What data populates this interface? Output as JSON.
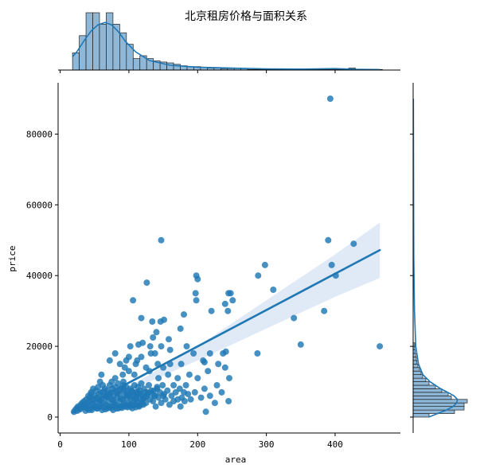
{
  "chart_data": {
    "type": "scatter",
    "title": "北京租房价格与面积关系",
    "xlabel": "area",
    "ylabel": "price",
    "xlim": [
      -3,
      495
    ],
    "ylim": [
      -4500,
      94500
    ],
    "xticks": [
      0,
      100,
      200,
      300,
      400
    ],
    "yticks": [
      0,
      20000,
      40000,
      60000,
      80000
    ],
    "grid": false,
    "colors": {
      "points": "#1f77b4",
      "regression": "#1f77b4",
      "confidence_band": "#dde9f5",
      "histogram_fill": "#8fb8d8",
      "histogram_edge": "#1f1f1f"
    },
    "regression": {
      "x": [
        18,
        465
      ],
      "y": [
        1300,
        47200
      ],
      "ci_x": [
        18,
        100,
        200,
        300,
        400,
        465
      ],
      "ci_upper": [
        2300,
        8600,
        20000,
        33000,
        46000,
        55000
      ],
      "ci_lower": [
        300,
        7400,
        16000,
        25000,
        34000,
        39300
      ]
    },
    "marginal_x_hist": {
      "bin_start": 18,
      "bin_width": 9.8,
      "counts": [
        6,
        12,
        20,
        20,
        16,
        20,
        16,
        13,
        9,
        4,
        5,
        4,
        3.2,
        2.8,
        2.5,
        2.0,
        1.5,
        1.2,
        1.2,
        1.0,
        0.7,
        0.7,
        0.5,
        0.5,
        0.5,
        0.5,
        0.2,
        0.2,
        0.2,
        0.2,
        0.2,
        0.2,
        0.2,
        0.2,
        0.2,
        0.2,
        0.2,
        0.2,
        0.2,
        0.2,
        0.2,
        0.7,
        0.2,
        0.2,
        0.2,
        0.2
      ],
      "max_count": 20
    },
    "marginal_y_hist": {
      "bin_start": 0,
      "bin_width": 1000,
      "counts": [
        5,
        13,
        16,
        16,
        17,
        12,
        11,
        9,
        7,
        5,
        4,
        3,
        2.5,
        2,
        1.5,
        1.2,
        1,
        0.8,
        0.6,
        0.5,
        0.5
      ],
      "max_count": 17
    },
    "kde_x": {
      "x": [
        18,
        25,
        35,
        45,
        55,
        65,
        75,
        85,
        95,
        110,
        130,
        160,
        200,
        250,
        300,
        350,
        400,
        430,
        465
      ],
      "density": [
        0.28,
        0.4,
        0.62,
        0.82,
        0.95,
        1.0,
        0.95,
        0.8,
        0.6,
        0.38,
        0.2,
        0.1,
        0.06,
        0.04,
        0.025,
        0.02,
        0.03,
        0.015,
        0.01
      ]
    },
    "kde_y": {
      "y": [
        0,
        1000,
        2000,
        3000,
        4000,
        5000,
        6000,
        7000,
        8000,
        10000,
        12000,
        15000,
        20000,
        30000,
        45000,
        60000,
        90000
      ],
      "density": [
        0.35,
        0.55,
        0.75,
        0.9,
        0.98,
        1.0,
        0.92,
        0.78,
        0.62,
        0.38,
        0.22,
        0.12,
        0.06,
        0.03,
        0.015,
        0.01,
        0.005
      ]
    },
    "points": [
      [
        393,
        90000
      ],
      [
        147,
        50000
      ],
      [
        390,
        50000
      ],
      [
        427,
        49000
      ],
      [
        298,
        43000
      ],
      [
        395,
        43000
      ],
      [
        401,
        40000
      ],
      [
        288,
        40000
      ],
      [
        198,
        40000
      ],
      [
        200,
        39000
      ],
      [
        126,
        38000
      ],
      [
        310,
        36000
      ],
      [
        245,
        35000
      ],
      [
        248,
        35000
      ],
      [
        197,
        35000
      ],
      [
        198,
        33000
      ],
      [
        106,
        33000
      ],
      [
        251,
        33000
      ],
      [
        240,
        32000
      ],
      [
        220,
        30000
      ],
      [
        244,
        30000
      ],
      [
        384,
        30000
      ],
      [
        180,
        29000
      ],
      [
        340,
        28000
      ],
      [
        118,
        28000
      ],
      [
        134,
        27000
      ],
      [
        146,
        27000
      ],
      [
        151,
        27500
      ],
      [
        175,
        25000
      ],
      [
        140,
        24000
      ],
      [
        135,
        22500
      ],
      [
        158,
        22000
      ],
      [
        120,
        21000
      ],
      [
        350,
        20500
      ],
      [
        465,
        20000
      ],
      [
        114,
        20500
      ],
      [
        147,
        20000
      ],
      [
        102,
        20000
      ],
      [
        131,
        20000
      ],
      [
        184,
        20000
      ],
      [
        160,
        19000
      ],
      [
        218,
        18000
      ],
      [
        194,
        18000
      ],
      [
        287,
        18000
      ],
      [
        132,
        18000
      ],
      [
        138,
        18000
      ],
      [
        241,
        18500
      ],
      [
        237,
        18000
      ],
      [
        80,
        18000
      ],
      [
        100,
        17000
      ],
      [
        118,
        17000
      ],
      [
        96,
        16000
      ],
      [
        112,
        16000
      ],
      [
        72,
        16000
      ],
      [
        208,
        16000
      ],
      [
        87,
        15000
      ],
      [
        142,
        15000
      ],
      [
        160,
        15000
      ],
      [
        176,
        15000
      ],
      [
        210,
        15500
      ],
      [
        230,
        15000
      ],
      [
        240,
        14000
      ],
      [
        150,
        14000
      ],
      [
        110,
        15000
      ],
      [
        125,
        14000
      ],
      [
        94,
        14000
      ],
      [
        130,
        13000
      ],
      [
        100,
        13000
      ],
      [
        215,
        13000
      ],
      [
        157,
        12000
      ],
      [
        188,
        12000
      ],
      [
        60,
        12000
      ],
      [
        80,
        11000
      ],
      [
        91,
        12000
      ],
      [
        108,
        12000
      ],
      [
        171,
        11000
      ],
      [
        143,
        11000
      ],
      [
        200,
        11000
      ],
      [
        58,
        10000
      ],
      [
        75,
        10000
      ],
      [
        92,
        10000
      ],
      [
        246,
        11000
      ],
      [
        228,
        9000
      ],
      [
        183,
        9000
      ],
      [
        210,
        8000
      ],
      [
        141,
        8000
      ],
      [
        165,
        9000
      ],
      [
        180,
        7000
      ],
      [
        235,
        7000
      ],
      [
        245,
        4500
      ],
      [
        212,
        1500
      ],
      [
        138,
        6000
      ],
      [
        128,
        7000
      ],
      [
        112,
        6500
      ],
      [
        150,
        6000
      ],
      [
        175,
        3000
      ],
      [
        110,
        5000
      ],
      [
        20,
        1500
      ],
      [
        22,
        2000
      ],
      [
        24,
        2500
      ],
      [
        26,
        3000
      ],
      [
        28,
        2500
      ],
      [
        30,
        3500
      ],
      [
        32,
        4000
      ],
      [
        33,
        3000
      ],
      [
        35,
        4500
      ],
      [
        36,
        3500
      ],
      [
        38,
        5000
      ],
      [
        39,
        2500
      ],
      [
        40,
        4000
      ],
      [
        41,
        6000
      ],
      [
        42,
        3000
      ],
      [
        43,
        5500
      ],
      [
        44,
        4500
      ],
      [
        45,
        7000
      ],
      [
        46,
        2000
      ],
      [
        47,
        5000
      ],
      [
        48,
        8000
      ],
      [
        49,
        3500
      ],
      [
        50,
        6000
      ],
      [
        51,
        4000
      ],
      [
        52,
        7500
      ],
      [
        53,
        2500
      ],
      [
        54,
        5500
      ],
      [
        55,
        8500
      ],
      [
        56,
        3000
      ],
      [
        57,
        6500
      ],
      [
        58,
        4500
      ],
      [
        59,
        7000
      ],
      [
        60,
        5000
      ],
      [
        61,
        2000
      ],
      [
        62,
        9000
      ],
      [
        63,
        4000
      ],
      [
        64,
        6000
      ],
      [
        65,
        8000
      ],
      [
        66,
        3500
      ],
      [
        67,
        5500
      ],
      [
        68,
        7500
      ],
      [
        69,
        2500
      ],
      [
        70,
        6500
      ],
      [
        71,
        4500
      ],
      [
        72,
        9000
      ],
      [
        73,
        3000
      ],
      [
        74,
        7000
      ],
      [
        75,
        5000
      ],
      [
        76,
        8000
      ],
      [
        77,
        2000
      ],
      [
        78,
        6000
      ],
      [
        79,
        4000
      ],
      [
        80,
        8500
      ],
      [
        81,
        3500
      ],
      [
        82,
        7000
      ],
      [
        83,
        5500
      ],
      [
        84,
        9500
      ],
      [
        85,
        2500
      ],
      [
        86,
        6500
      ],
      [
        87,
        4500
      ],
      [
        88,
        8000
      ],
      [
        89,
        3000
      ],
      [
        90,
        7500
      ],
      [
        91,
        5000
      ],
      [
        92,
        9000
      ],
      [
        93,
        4000
      ],
      [
        94,
        6000
      ],
      [
        95,
        3000
      ],
      [
        96,
        8500
      ],
      [
        97,
        5500
      ],
      [
        98,
        7000
      ],
      [
        99,
        4000
      ],
      [
        100,
        6500
      ],
      [
        101,
        3500
      ],
      [
        102,
        8000
      ],
      [
        103,
        5000
      ],
      [
        104,
        7500
      ],
      [
        105,
        2500
      ],
      [
        106,
        6000
      ],
      [
        107,
        4500
      ],
      [
        108,
        9000
      ],
      [
        109,
        3500
      ],
      [
        110,
        7000
      ],
      [
        111,
        5500
      ],
      [
        112,
        4000
      ],
      [
        113,
        8500
      ],
      [
        114,
        6500
      ],
      [
        115,
        3000
      ],
      [
        116,
        7500
      ],
      [
        117,
        5000
      ],
      [
        118,
        9500
      ],
      [
        119,
        4500
      ],
      [
        120,
        6000
      ],
      [
        121,
        3500
      ],
      [
        122,
        8000
      ],
      [
        123,
        5500
      ],
      [
        124,
        7000
      ],
      [
        125,
        4000
      ],
      [
        127,
        6500
      ],
      [
        129,
        9000
      ],
      [
        131,
        5000
      ],
      [
        133,
        7500
      ],
      [
        135,
        4500
      ],
      [
        137,
        6000
      ],
      [
        139,
        3000
      ],
      [
        141,
        8500
      ],
      [
        143,
        5500
      ],
      [
        145,
        7000
      ],
      [
        147,
        4000
      ],
      [
        149,
        9000
      ],
      [
        151,
        6500
      ],
      [
        153,
        5000
      ],
      [
        156,
        7500
      ],
      [
        159,
        3500
      ],
      [
        162,
        6000
      ],
      [
        165,
        4500
      ],
      [
        168,
        7000
      ],
      [
        171,
        5000
      ],
      [
        174,
        8000
      ],
      [
        177,
        5500
      ],
      [
        181,
        4500
      ],
      [
        186,
        6500
      ],
      [
        190,
        5000
      ],
      [
        196,
        7000
      ],
      [
        205,
        5500
      ],
      [
        218,
        6000
      ],
      [
        225,
        4000
      ],
      [
        25,
        1800
      ],
      [
        29,
        2200
      ],
      [
        34,
        2800
      ],
      [
        37,
        1800
      ],
      [
        42,
        2000
      ],
      [
        46,
        2600
      ],
      [
        50,
        3000
      ],
      [
        54,
        2400
      ],
      [
        58,
        3200
      ],
      [
        62,
        2800
      ],
      [
        66,
        2200
      ],
      [
        70,
        3000
      ],
      [
        74,
        2600
      ],
      [
        78,
        3400
      ],
      [
        82,
        2400
      ],
      [
        86,
        3000
      ],
      [
        90,
        2600
      ],
      [
        94,
        3400
      ],
      [
        98,
        2800
      ],
      [
        102,
        3000
      ],
      [
        106,
        3400
      ],
      [
        110,
        2800
      ],
      [
        114,
        3200
      ],
      [
        118,
        3600
      ],
      [
        45,
        6500
      ],
      [
        52,
        5200
      ],
      [
        57,
        4800
      ],
      [
        63,
        7200
      ],
      [
        68,
        5800
      ],
      [
        72,
        6200
      ],
      [
        77,
        4800
      ],
      [
        83,
        6800
      ],
      [
        88,
        5200
      ],
      [
        93,
        7800
      ],
      [
        97,
        6400
      ],
      [
        101,
        5800
      ],
      [
        105,
        7200
      ],
      [
        109,
        6000
      ],
      [
        113,
        7000
      ],
      [
        117,
        6600
      ],
      [
        121,
        5200
      ],
      [
        126,
        5800
      ],
      [
        132,
        6800
      ],
      [
        136,
        7400
      ]
    ]
  }
}
